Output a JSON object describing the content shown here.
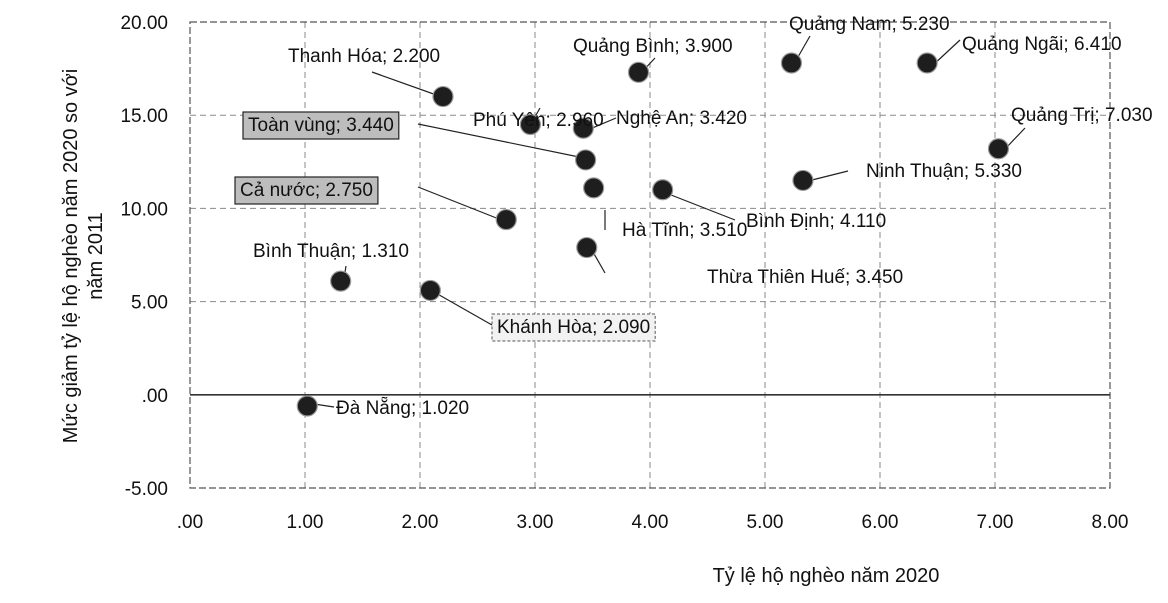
{
  "chart_data": {
    "type": "scatter",
    "xlabel": "Tỷ lệ hộ nghèo năm 2020",
    "ylabel": [
      "Mức giảm tỷ lệ hộ nghèo năm 2020 so với",
      "năm 2011"
    ],
    "xlim": [
      0,
      8
    ],
    "ylim": [
      -5,
      20
    ],
    "x_ticks": [
      0,
      1,
      2,
      3,
      4,
      5,
      6,
      7,
      8
    ],
    "x_tick_labels": [
      ".00",
      "1.00",
      "2.00",
      "3.00",
      "4.00",
      "5.00",
      "6.00",
      "7.00",
      "8.00"
    ],
    "y_ticks": [
      -5,
      0,
      5,
      10,
      15,
      20
    ],
    "y_tick_labels": [
      "-5.00",
      ".00",
      "5.00",
      "10.00",
      "15.00",
      "20.00"
    ],
    "grid": true,
    "points": [
      {
        "label": "Thanh Hóa; 2.200",
        "x": 2.2,
        "y": 16.0,
        "boxed": ""
      },
      {
        "label": "Phú Yên; 2.960",
        "x": 2.96,
        "y": 14.5,
        "boxed": ""
      },
      {
        "label": "Quảng Bình; 3.900",
        "x": 3.9,
        "y": 17.3,
        "boxed": ""
      },
      {
        "label": "Quảng Nam; 5.230",
        "x": 5.23,
        "y": 17.8,
        "boxed": ""
      },
      {
        "label": "Quảng Ngãi; 6.410",
        "x": 6.41,
        "y": 17.8,
        "boxed": ""
      },
      {
        "label": "Nghệ An; 3.420",
        "x": 3.42,
        "y": 14.3,
        "boxed": ""
      },
      {
        "label": "Quảng Trị; 7.030",
        "x": 7.03,
        "y": 13.2,
        "boxed": ""
      },
      {
        "label": "Toàn vùng; 3.440",
        "x": 3.44,
        "y": 12.6,
        "boxed": "dark"
      },
      {
        "label": "Ninh Thuận; 5.330",
        "x": 5.33,
        "y": 11.5,
        "boxed": ""
      },
      {
        "label": "Cả nước; 2.750",
        "x": 2.75,
        "y": 9.4,
        "boxed": "dark"
      },
      {
        "label": "Hà Tĩnh; 3.510",
        "x": 3.51,
        "y": 11.1,
        "boxed": ""
      },
      {
        "label": "Bình Định; 4.110",
        "x": 4.11,
        "y": 11.0,
        "boxed": ""
      },
      {
        "label": "Thừa Thiên Huế; 3.450",
        "x": 3.45,
        "y": 7.9,
        "boxed": ""
      },
      {
        "label": "Bình Thuận; 1.310",
        "x": 1.31,
        "y": 6.1,
        "boxed": ""
      },
      {
        "label": "Khánh Hòa; 2.090",
        "x": 2.09,
        "y": 5.6,
        "boxed": "light"
      },
      {
        "label": "Đà Nẵng; 1.020",
        "x": 1.02,
        "y": -0.6,
        "boxed": ""
      }
    ]
  }
}
